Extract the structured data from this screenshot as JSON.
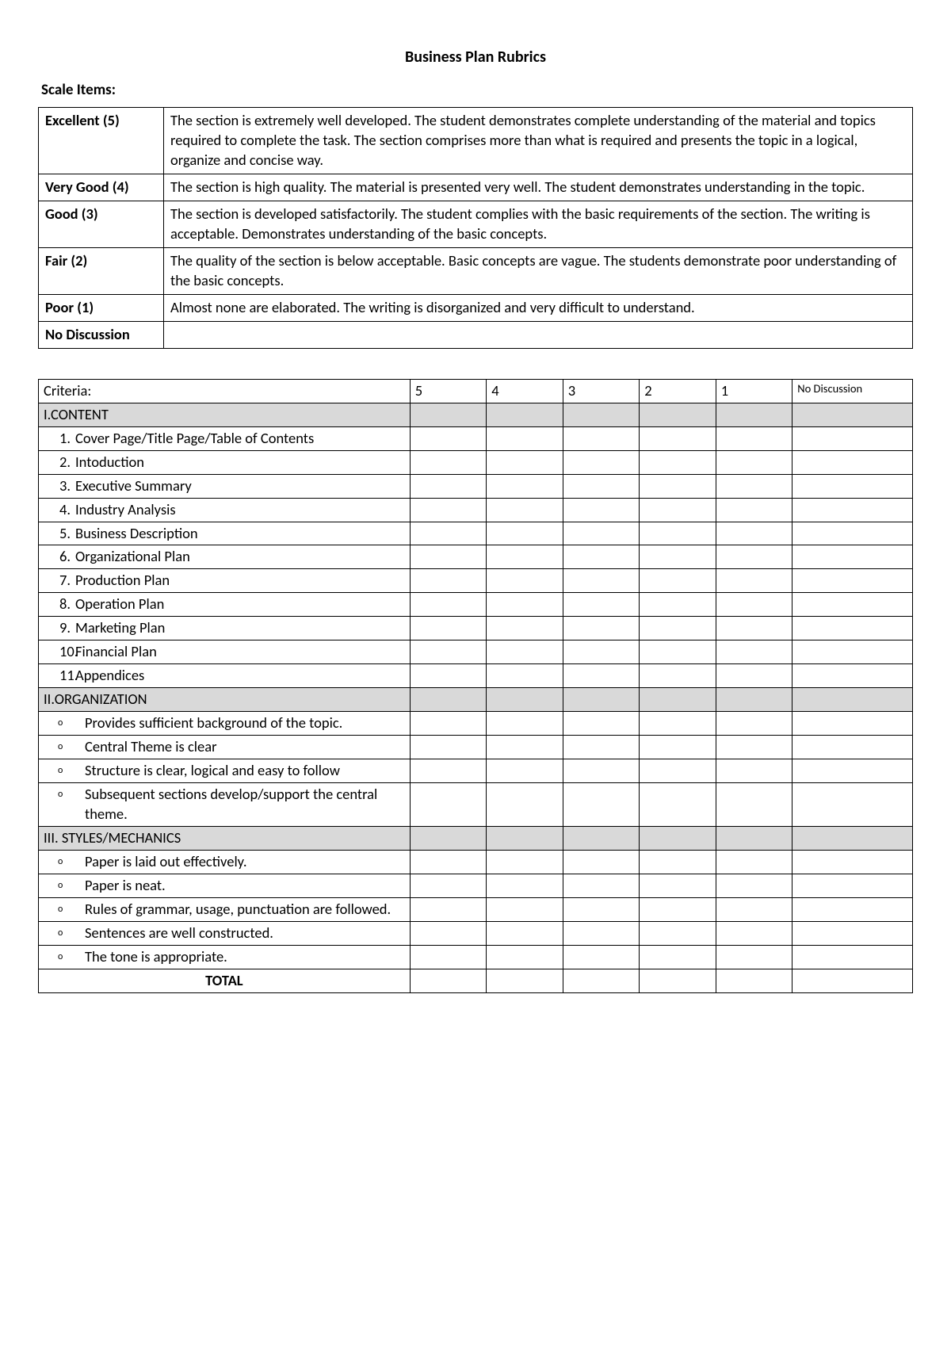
{
  "colors": {
    "page_bg": "#ffffff",
    "text": "#000000",
    "border": "#000000",
    "section_bg": "#d9d9d9"
  },
  "title": "Business Plan Rubrics",
  "scale_label": "Scale Items:",
  "scale": [
    {
      "label": "Excellent (5)",
      "desc": "The section is extremely well developed. The student demonstrates complete understanding of the material and topics required to complete the task. The section comprises more than what is required and presents the topic in a logical, organize and concise way."
    },
    {
      "label": "Very Good (4)",
      "desc": "The section is high quality. The material is presented very well. The student demonstrates understanding in the topic."
    },
    {
      "label": "Good (3)",
      "desc": "The section is developed satisfactorily. The student complies with the basic requirements of the section. The writing is acceptable. Demonstrates understanding of the basic concepts."
    },
    {
      "label": "Fair (2)",
      "desc": "The quality of the section is below acceptable. Basic concepts are vague. The students demonstrate poor understanding of the basic concepts."
    },
    {
      "label": "Poor (1)",
      "desc": "Almost none are elaborated. The writing is disorganized and very difficult to understand."
    },
    {
      "label": "No Discussion",
      "desc": ""
    }
  ],
  "criteria_table": {
    "header": {
      "criteria": "Criteria:",
      "cols": [
        "5",
        "4",
        "3",
        "2",
        "1",
        "No Discussion"
      ]
    },
    "sections": [
      {
        "title": "I.CONTENT",
        "type": "numbered",
        "items": [
          {
            "num": "1.",
            "text": "Cover Page/Title Page/Table of Contents"
          },
          {
            "num": "2.",
            "text": "Intoduction"
          },
          {
            "num": "3.",
            "text": "Executive Summary"
          },
          {
            "num": "4.",
            "text": "Industry Analysis"
          },
          {
            "num": "5.",
            "text": "Business Description"
          },
          {
            "num": "6.",
            "text": "Organizational Plan"
          },
          {
            "num": "7.",
            "text": "Production Plan"
          },
          {
            "num": "8.",
            "text": "Operation Plan"
          },
          {
            "num": "9.",
            "text": "Marketing Plan"
          },
          {
            "num": "10.",
            "text": "Financial Plan"
          },
          {
            "num": "11.",
            "text": "Appendices"
          }
        ]
      },
      {
        "title": "II.ORGANIZATION",
        "type": "bullet",
        "items": [
          {
            "text": "Provides sufficient background of the topic."
          },
          {
            "text": "Central Theme is clear"
          },
          {
            "text": "Structure is clear, logical and easy to follow"
          },
          {
            "text": "Subsequent sections develop/support the central theme."
          }
        ]
      },
      {
        "title": "III. STYLES/MECHANICS",
        "type": "bullet",
        "items": [
          {
            "text": "Paper is laid out effectively."
          },
          {
            "text": "Paper is neat."
          },
          {
            "text": "Rules of grammar, usage, punctuation are followed."
          },
          {
            "text": "Sentences are well constructed."
          },
          {
            "text": "The tone is appropriate."
          }
        ]
      }
    ],
    "total_label": "TOTAL"
  }
}
